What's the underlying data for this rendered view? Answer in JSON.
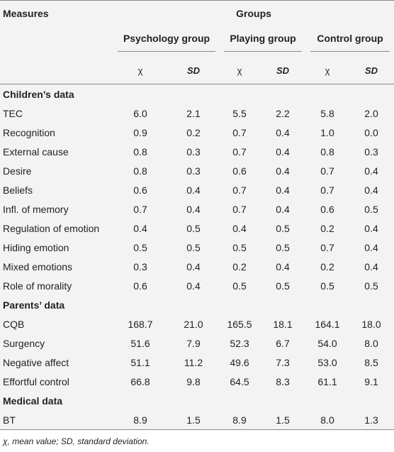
{
  "table": {
    "header": {
      "measures": "Measures",
      "groups": "Groups",
      "group_names": [
        "Psychology group",
        "Playing group",
        "Control group"
      ],
      "stat_labels": [
        "χ",
        "SD",
        "χ",
        "SD",
        "χ",
        "SD"
      ]
    },
    "sections": [
      {
        "title": "Children’s data",
        "rows": [
          [
            "TEC",
            "6.0",
            "2.1",
            "5.5",
            "2.2",
            "5.8",
            "2.0"
          ],
          [
            "Recognition",
            "0.9",
            "0.2",
            "0.7",
            "0.4",
            "1.0",
            "0.0"
          ],
          [
            "External cause",
            "0.8",
            "0.3",
            "0.7",
            "0.4",
            "0.8",
            "0.3"
          ],
          [
            "Desire",
            "0.8",
            "0.3",
            "0.6",
            "0.4",
            "0.7",
            "0.4"
          ],
          [
            "Beliefs",
            "0.6",
            "0.4",
            "0.7",
            "0.4",
            "0.7",
            "0.4"
          ],
          [
            "Infl. of memory",
            "0.7",
            "0.4",
            "0.7",
            "0.4",
            "0.6",
            "0.5"
          ],
          [
            "Regulation of emotion",
            "0.4",
            "0.5",
            "0.4",
            "0.5",
            "0.2",
            "0.4"
          ],
          [
            "Hiding emotion",
            "0.5",
            "0.5",
            "0.5",
            "0.5",
            "0.7",
            "0.4"
          ],
          [
            "Mixed emotions",
            "0.3",
            "0.4",
            "0.2",
            "0.4",
            "0.2",
            "0.4"
          ],
          [
            "Role of morality",
            "0.6",
            "0.4",
            "0.5",
            "0.5",
            "0.5",
            "0.5"
          ]
        ]
      },
      {
        "title": "Parents’ data",
        "rows": [
          [
            "CQB",
            "168.7",
            "21.0",
            "165.5",
            "18.1",
            "164.1",
            "18.0"
          ],
          [
            "Surgency",
            "51.6",
            "7.9",
            "52.3",
            "6.7",
            "54.0",
            "8.0"
          ],
          [
            "Negative affect",
            "51.1",
            "11.2",
            "49.6",
            "7.3",
            "53.0",
            "8.5"
          ],
          [
            "Effortful control",
            "66.8",
            "9.8",
            "64.5",
            "8.3",
            "61.1",
            "9.1"
          ]
        ]
      },
      {
        "title": "Medical data",
        "rows": [
          [
            "BT",
            "8.9",
            "1.5",
            "8.9",
            "1.5",
            "8.0",
            "1.3"
          ]
        ]
      }
    ]
  },
  "footnote": "χ, mean value; SD, standard deviation."
}
